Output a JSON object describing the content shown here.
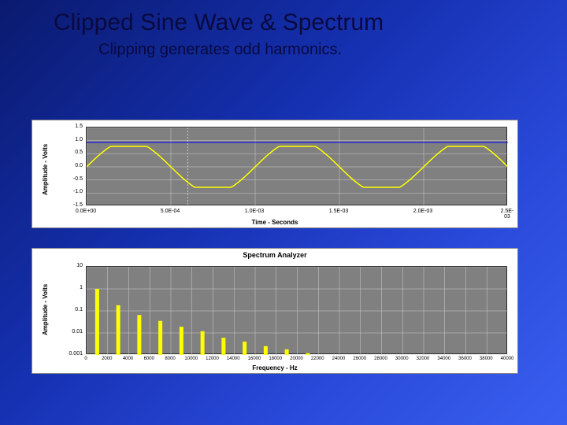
{
  "title": "Clipped Sine Wave & Spectrum",
  "subtitle": "Clipping generates odd harmonics.",
  "waveform_chart": {
    "type": "line",
    "ylabel": "Amplitude - Volts",
    "xlabel": "Time - Seconds",
    "yticks": [
      "1.5",
      "1.0",
      "0.5",
      "0.0",
      "-0.5",
      "-1.0",
      "-1.5"
    ],
    "xticks": [
      "0.0E+00",
      "5.0E-04",
      "1.0E-03",
      "1.5E-03",
      "2.0E-03",
      "2.5E-03"
    ],
    "ylim": [
      -1.5,
      1.5
    ],
    "xlim": [
      0,
      0.0025
    ],
    "signal_color": "#ffff00",
    "reference_color": "#0000ff",
    "grid_color": "#cccccc",
    "background_color": "#808080",
    "frequency_hz": 1000,
    "clip_level": 0.78,
    "reference_level": 0.93,
    "vertical_marker_x": 0.0006
  },
  "spectrum_chart": {
    "type": "bar",
    "title": "Spectrum Analyzer",
    "ylabel": "Amplitude - Volts",
    "xlabel": "Frequency - Hz",
    "yticks": [
      "10",
      "1",
      "0.1",
      "0.01",
      "0.001"
    ],
    "xticks": [
      "0",
      "2000",
      "4000",
      "6000",
      "8000",
      "10000",
      "12000",
      "14000",
      "16000",
      "18000",
      "20000",
      "22000",
      "24000",
      "26000",
      "28000",
      "30000",
      "32000",
      "34000",
      "36000",
      "38000",
      "40000"
    ],
    "ylim_log": [
      0.001,
      10
    ],
    "xlim": [
      0,
      40000
    ],
    "bar_color": "#ffff00",
    "grid_color": "#cccccc",
    "background_color": "#808080",
    "harmonics": [
      {
        "freq": 1000,
        "amp": 1.0
      },
      {
        "freq": 3000,
        "amp": 0.18
      },
      {
        "freq": 5000,
        "amp": 0.065
      },
      {
        "freq": 7000,
        "amp": 0.035
      },
      {
        "freq": 9000,
        "amp": 0.019
      },
      {
        "freq": 11000,
        "amp": 0.012
      },
      {
        "freq": 13000,
        "amp": 0.006
      },
      {
        "freq": 15000,
        "amp": 0.004
      },
      {
        "freq": 17000,
        "amp": 0.0025
      },
      {
        "freq": 19000,
        "amp": 0.0018
      },
      {
        "freq": 21000,
        "amp": 0.0012
      }
    ]
  }
}
